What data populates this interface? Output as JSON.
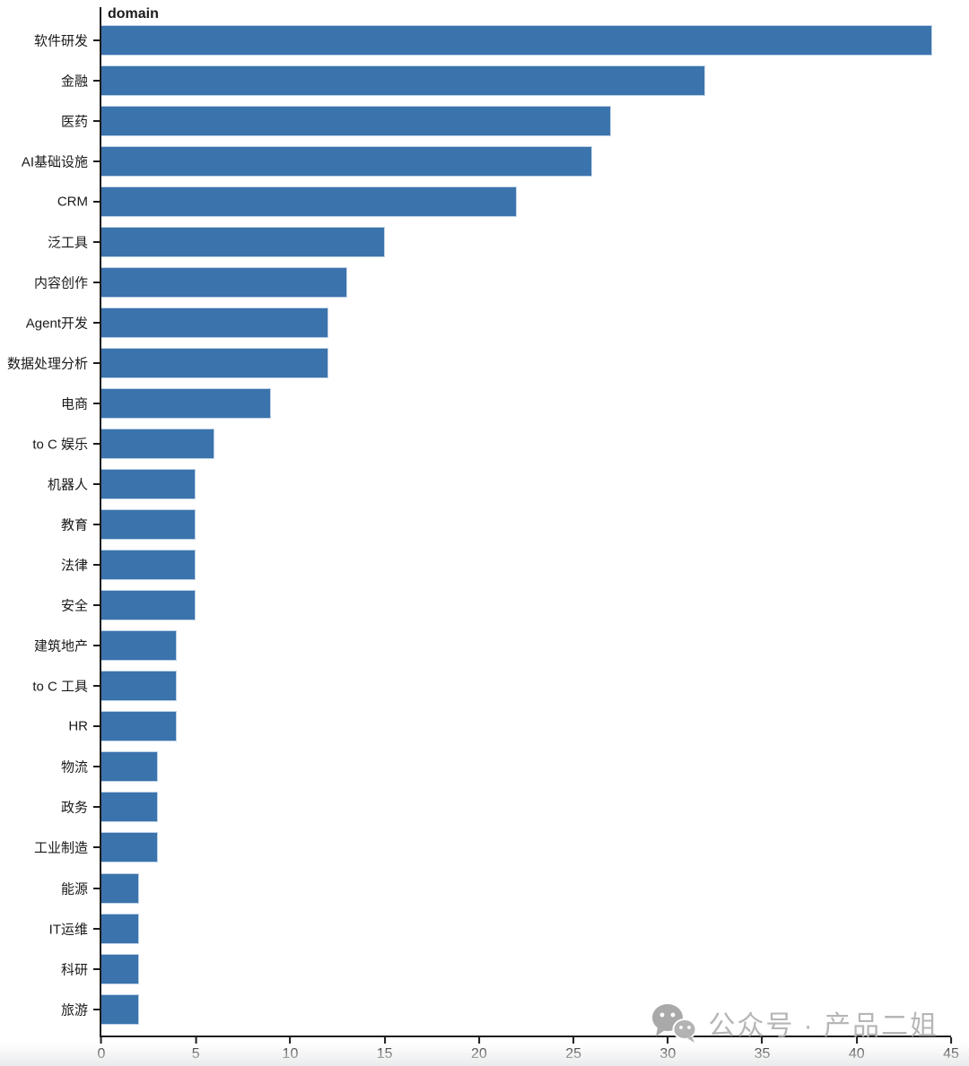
{
  "chart_data": {
    "type": "bar",
    "orientation": "horizontal",
    "title": "domain",
    "categories": [
      "软件研发",
      "金融",
      "医药",
      "AI基础设施",
      "CRM",
      "泛工具",
      "内容创作",
      "Agent开发",
      "数据处理分析",
      "电商",
      "to C 娱乐",
      "机器人",
      "教育",
      "法律",
      "安全",
      "建筑地产",
      "to C 工具",
      "HR",
      "物流",
      "政务",
      "工业制造",
      "能源",
      "IT运维",
      "科研",
      "旅游"
    ],
    "values": [
      44,
      32,
      27,
      26,
      22,
      15,
      13,
      12,
      12,
      9,
      6,
      5,
      5,
      5,
      5,
      4,
      4,
      4,
      3,
      3,
      3,
      2,
      2,
      2,
      2
    ],
    "xlabel": "",
    "ylabel": "domain",
    "xlim": [
      0,
      45
    ],
    "xticks": [
      0,
      5,
      10,
      15,
      20,
      25,
      30,
      35,
      40,
      45
    ],
    "grid": false,
    "legend": null,
    "bar_color": "#3b73ac",
    "bar_edge_color": "#bfd2e8"
  },
  "watermark": {
    "icon": "wechat-icon",
    "text": "公众号 · 产品二姐"
  }
}
